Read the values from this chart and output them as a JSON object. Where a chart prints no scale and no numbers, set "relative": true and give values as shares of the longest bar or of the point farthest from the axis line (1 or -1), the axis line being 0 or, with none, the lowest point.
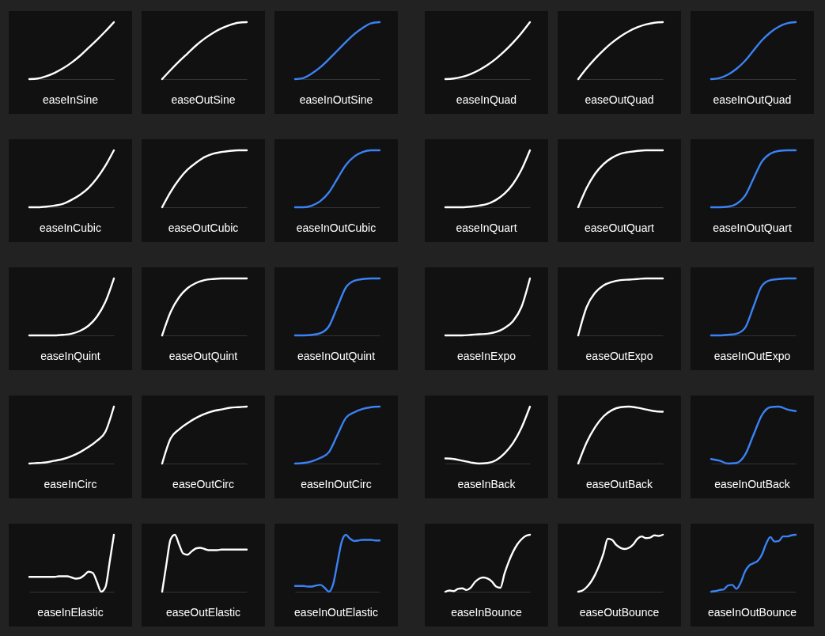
{
  "chart_data": [
    {
      "type": "line",
      "title": "easeInSine",
      "relative": true,
      "categories": [
        null,
        null,
        null,
        null,
        null,
        null,
        null,
        null,
        null,
        null,
        null
      ],
      "values": [
        0,
        0.01,
        0.05,
        0.11,
        0.19,
        0.29,
        0.41,
        0.55,
        0.69,
        0.84,
        1
      ],
      "color": "#ffffff"
    },
    {
      "type": "line",
      "title": "easeOutSine",
      "relative": true,
      "categories": [
        null,
        null,
        null,
        null,
        null,
        null,
        null,
        null,
        null,
        null,
        null
      ],
      "values": [
        0,
        0.16,
        0.31,
        0.45,
        0.59,
        0.71,
        0.81,
        0.89,
        0.95,
        0.99,
        1
      ],
      "color": "#ffffff"
    },
    {
      "type": "line",
      "title": "easeInOutSine",
      "relative": true,
      "categories": [
        null,
        null,
        null,
        null,
        null,
        null,
        null,
        null,
        null,
        null,
        null
      ],
      "values": [
        0,
        0.02,
        0.1,
        0.21,
        0.35,
        0.5,
        0.65,
        0.79,
        0.9,
        0.98,
        1
      ],
      "color": "#3b82f6"
    },
    {
      "type": "line",
      "title": "easeInQuad",
      "relative": true,
      "categories": [
        null,
        null,
        null,
        null,
        null,
        null,
        null,
        null,
        null,
        null,
        null
      ],
      "values": [
        0,
        0.01,
        0.04,
        0.09,
        0.16,
        0.25,
        0.36,
        0.49,
        0.64,
        0.81,
        1
      ],
      "color": "#ffffff"
    },
    {
      "type": "line",
      "title": "easeOutQuad",
      "relative": true,
      "categories": [
        null,
        null,
        null,
        null,
        null,
        null,
        null,
        null,
        null,
        null,
        null
      ],
      "values": [
        0,
        0.19,
        0.36,
        0.51,
        0.64,
        0.75,
        0.84,
        0.91,
        0.96,
        0.99,
        1
      ],
      "color": "#ffffff"
    },
    {
      "type": "line",
      "title": "easeInOutQuad",
      "relative": true,
      "categories": [
        null,
        null,
        null,
        null,
        null,
        null,
        null,
        null,
        null,
        null,
        null
      ],
      "values": [
        0,
        0.02,
        0.08,
        0.18,
        0.32,
        0.5,
        0.68,
        0.82,
        0.92,
        0.98,
        1
      ],
      "color": "#3b82f6"
    },
    {
      "type": "line",
      "title": "easeInCubic",
      "relative": true,
      "categories": [
        null,
        null,
        null,
        null,
        null,
        null,
        null,
        null,
        null,
        null,
        null
      ],
      "values": [
        0,
        0,
        0.01,
        0.03,
        0.06,
        0.13,
        0.22,
        0.34,
        0.51,
        0.73,
        1
      ],
      "color": "#ffffff"
    },
    {
      "type": "line",
      "title": "easeOutCubic",
      "relative": true,
      "categories": [
        null,
        null,
        null,
        null,
        null,
        null,
        null,
        null,
        null,
        null,
        null
      ],
      "values": [
        0,
        0.27,
        0.49,
        0.66,
        0.78,
        0.88,
        0.94,
        0.97,
        0.99,
        1,
        1
      ],
      "color": "#ffffff"
    },
    {
      "type": "line",
      "title": "easeInOutCubic",
      "relative": true,
      "categories": [
        null,
        null,
        null,
        null,
        null,
        null,
        null,
        null,
        null,
        null,
        null
      ],
      "values": [
        0,
        0,
        0.03,
        0.11,
        0.26,
        0.5,
        0.74,
        0.89,
        0.97,
        1,
        1
      ],
      "color": "#3b82f6"
    },
    {
      "type": "line",
      "title": "easeInQuart",
      "relative": true,
      "categories": [
        null,
        null,
        null,
        null,
        null,
        null,
        null,
        null,
        null,
        null,
        null
      ],
      "values": [
        0,
        0,
        0,
        0.01,
        0.03,
        0.06,
        0.13,
        0.24,
        0.41,
        0.66,
        1
      ],
      "color": "#ffffff"
    },
    {
      "type": "line",
      "title": "easeOutQuart",
      "relative": true,
      "categories": [
        null,
        null,
        null,
        null,
        null,
        null,
        null,
        null,
        null,
        null,
        null
      ],
      "values": [
        0,
        0.34,
        0.59,
        0.76,
        0.87,
        0.94,
        0.97,
        0.99,
        1,
        1,
        1
      ],
      "color": "#ffffff"
    },
    {
      "type": "line",
      "title": "easeInOutQuart",
      "relative": true,
      "categories": [
        null,
        null,
        null,
        null,
        null,
        null,
        null,
        null,
        null,
        null,
        null
      ],
      "values": [
        0,
        0,
        0.01,
        0.06,
        0.2,
        0.5,
        0.8,
        0.94,
        0.99,
        1,
        1
      ],
      "color": "#3b82f6"
    },
    {
      "type": "line",
      "title": "easeInQuint",
      "relative": true,
      "categories": [
        null,
        null,
        null,
        null,
        null,
        null,
        null,
        null,
        null,
        null,
        null
      ],
      "values": [
        0,
        0,
        0,
        0,
        0.01,
        0.03,
        0.08,
        0.17,
        0.33,
        0.59,
        1
      ],
      "color": "#ffffff"
    },
    {
      "type": "line",
      "title": "easeOutQuint",
      "relative": true,
      "categories": [
        null,
        null,
        null,
        null,
        null,
        null,
        null,
        null,
        null,
        null,
        null
      ],
      "values": [
        0,
        0.41,
        0.67,
        0.83,
        0.92,
        0.97,
        0.99,
        1,
        1,
        1,
        1
      ],
      "color": "#ffffff"
    },
    {
      "type": "line",
      "title": "easeInOutQuint",
      "relative": true,
      "categories": [
        null,
        null,
        null,
        null,
        null,
        null,
        null,
        null,
        null,
        null,
        null
      ],
      "values": [
        0,
        0,
        0.01,
        0.04,
        0.16,
        0.5,
        0.84,
        0.96,
        0.99,
        1,
        1
      ],
      "color": "#3b82f6"
    },
    {
      "type": "line",
      "title": "easeInExpo",
      "relative": true,
      "categories": [
        null,
        null,
        null,
        null,
        null,
        null,
        null,
        null,
        null,
        null,
        null
      ],
      "values": [
        0,
        0,
        0,
        0.01,
        0.02,
        0.03,
        0.06,
        0.13,
        0.25,
        0.5,
        1
      ],
      "color": "#ffffff"
    },
    {
      "type": "line",
      "title": "easeOutExpo",
      "relative": true,
      "categories": [
        null,
        null,
        null,
        null,
        null,
        null,
        null,
        null,
        null,
        null,
        null
      ],
      "values": [
        0,
        0.5,
        0.75,
        0.88,
        0.94,
        0.97,
        0.98,
        0.99,
        1,
        1,
        1
      ],
      "color": "#ffffff"
    },
    {
      "type": "line",
      "title": "easeInOutExpo",
      "relative": true,
      "categories": [
        null,
        null,
        null,
        null,
        null,
        null,
        null,
        null,
        null,
        null,
        null
      ],
      "values": [
        0,
        0,
        0.01,
        0.03,
        0.13,
        0.5,
        0.87,
        0.97,
        0.99,
        1,
        1
      ],
      "color": "#3b82f6"
    },
    {
      "type": "line",
      "title": "easeInCirc",
      "relative": true,
      "categories": [
        null,
        null,
        null,
        null,
        null,
        null,
        null,
        null,
        null,
        null,
        null
      ],
      "values": [
        0,
        0.01,
        0.02,
        0.05,
        0.08,
        0.13,
        0.2,
        0.29,
        0.4,
        0.56,
        1
      ],
      "color": "#ffffff"
    },
    {
      "type": "line",
      "title": "easeOutCirc",
      "relative": true,
      "categories": [
        null,
        null,
        null,
        null,
        null,
        null,
        null,
        null,
        null,
        null,
        null
      ],
      "values": [
        0,
        0.44,
        0.6,
        0.71,
        0.8,
        0.87,
        0.92,
        0.95,
        0.98,
        0.99,
        1
      ],
      "color": "#ffffff"
    },
    {
      "type": "line",
      "title": "easeInOutCirc",
      "relative": true,
      "categories": [
        null,
        null,
        null,
        null,
        null,
        null,
        null,
        null,
        null,
        null,
        null
      ],
      "values": [
        0,
        0.01,
        0.04,
        0.1,
        0.2,
        0.5,
        0.8,
        0.9,
        0.96,
        0.99,
        1
      ],
      "color": "#3b82f6"
    },
    {
      "type": "line",
      "title": "easeInBack",
      "relative": true,
      "categories": [
        null,
        null,
        null,
        null,
        null,
        null,
        null,
        null,
        null,
        null,
        null
      ],
      "values": [
        0.09,
        0.08,
        0.05,
        0.02,
        0,
        0.01,
        0.06,
        0.18,
        0.36,
        0.63,
        1
      ],
      "color": "#ffffff"
    },
    {
      "type": "line",
      "title": "easeOutBack",
      "relative": true,
      "categories": [
        null,
        null,
        null,
        null,
        null,
        null,
        null,
        null,
        null,
        null,
        null
      ],
      "values": [
        0,
        0.37,
        0.64,
        0.83,
        0.94,
        0.99,
        1,
        0.98,
        0.95,
        0.92,
        0.91
      ],
      "color": "#ffffff"
    },
    {
      "type": "line",
      "title": "easeInOutBack",
      "relative": true,
      "categories": [
        null,
        null,
        null,
        null,
        null,
        null,
        null,
        null,
        null,
        null,
        null
      ],
      "values": [
        0.08,
        0.05,
        0,
        0.01,
        0.15,
        0.5,
        0.85,
        0.99,
        1,
        0.95,
        0.92
      ],
      "color": "#3b82f6"
    },
    {
      "type": "line",
      "title": "easeInElastic",
      "relative": true,
      "categories": [
        null,
        null,
        null,
        null,
        null,
        null,
        null,
        null,
        null,
        null,
        null,
        null,
        null,
        null,
        null,
        null,
        null,
        null,
        null,
        null,
        null
      ],
      "values": [
        0.26,
        0.26,
        0.26,
        0.26,
        0.26,
        0.26,
        0.26,
        0.27,
        0.27,
        0.27,
        0.25,
        0.23,
        0.24,
        0.29,
        0.35,
        0.33,
        0.17,
        0,
        0.08,
        0.52,
        1
      ],
      "color": "#ffffff"
    },
    {
      "type": "line",
      "title": "easeOutElastic",
      "relative": true,
      "categories": [
        null,
        null,
        null,
        null,
        null,
        null,
        null,
        null,
        null,
        null,
        null,
        null,
        null,
        null,
        null,
        null,
        null,
        null,
        null,
        null,
        null
      ],
      "values": [
        0,
        0.48,
        0.92,
        1,
        0.83,
        0.67,
        0.65,
        0.71,
        0.76,
        0.77,
        0.75,
        0.73,
        0.73,
        0.73,
        0.74,
        0.74,
        0.74,
        0.74,
        0.74,
        0.74,
        0.74
      ],
      "color": "#ffffff"
    },
    {
      "type": "line",
      "title": "easeInOutElastic",
      "relative": true,
      "categories": [
        null,
        null,
        null,
        null,
        null,
        null,
        null,
        null,
        null,
        null,
        null,
        null,
        null,
        null,
        null,
        null,
        null,
        null,
        null,
        null,
        null
      ],
      "values": [
        0.1,
        0.1,
        0.1,
        0.09,
        0.09,
        0.11,
        0.12,
        0.07,
        0,
        0.13,
        0.5,
        0.87,
        1,
        0.93,
        0.89,
        0.9,
        0.91,
        0.91,
        0.91,
        0.9,
        0.9
      ],
      "color": "#3b82f6"
    },
    {
      "type": "line",
      "title": "easeInBounce",
      "relative": true,
      "categories": [
        null,
        null,
        null,
        null,
        null,
        null,
        null,
        null,
        null,
        null,
        null,
        null,
        null,
        null,
        null,
        null,
        null,
        null,
        null,
        null,
        null
      ],
      "values": [
        0,
        0.02,
        0.01,
        0.05,
        0.06,
        0.03,
        0.07,
        0.17,
        0.23,
        0.25,
        0.23,
        0.18,
        0.09,
        0.07,
        0.32,
        0.53,
        0.7,
        0.83,
        0.92,
        0.98,
        1
      ],
      "color": "#ffffff"
    },
    {
      "type": "line",
      "title": "easeOutBounce",
      "relative": true,
      "categories": [
        null,
        null,
        null,
        null,
        null,
        null,
        null,
        null,
        null,
        null,
        null,
        null,
        null,
        null,
        null,
        null,
        null,
        null,
        null,
        null,
        null
      ],
      "values": [
        0,
        0.02,
        0.08,
        0.17,
        0.3,
        0.47,
        0.68,
        0.93,
        0.91,
        0.82,
        0.77,
        0.75,
        0.77,
        0.83,
        0.93,
        0.97,
        0.94,
        0.95,
        0.99,
        0.98,
        1
      ],
      "color": "#ffffff"
    },
    {
      "type": "line",
      "title": "easeInOutBounce",
      "relative": true,
      "categories": [
        null,
        null,
        null,
        null,
        null,
        null,
        null,
        null,
        null,
        null,
        null,
        null,
        null,
        null,
        null,
        null,
        null,
        null,
        null,
        null,
        null
      ],
      "values": [
        0,
        0.01,
        0.03,
        0.04,
        0.11,
        0.12,
        0.05,
        0.16,
        0.35,
        0.46,
        0.5,
        0.54,
        0.65,
        0.84,
        0.96,
        0.88,
        0.89,
        0.97,
        0.97,
        0.99,
        1
      ],
      "color": "#3b82f6"
    }
  ]
}
